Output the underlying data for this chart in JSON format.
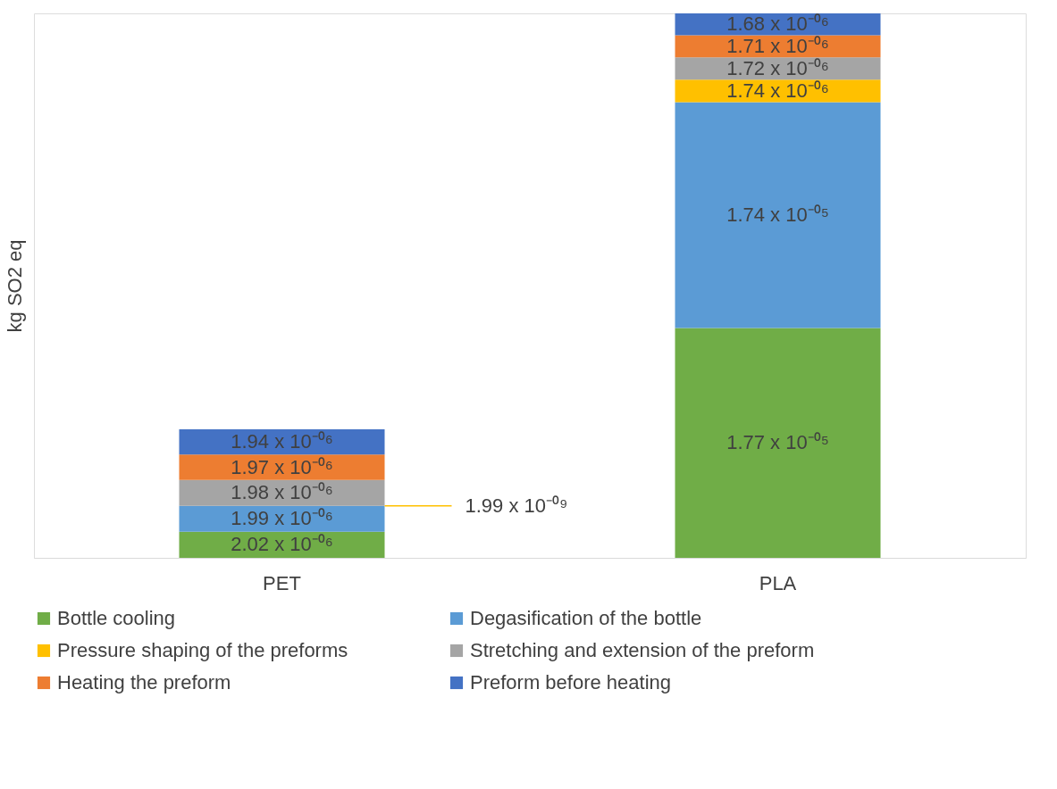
{
  "chart_data": {
    "type": "bar",
    "stacked": true,
    "ylabel": "kg SO2 eq",
    "categories": [
      "PET",
      "PLA"
    ],
    "legend": "bottom",
    "grid": false,
    "series": [
      {
        "name": "Bottle cooling",
        "color": "#70ad47",
        "values": [
          2.02e-06,
          1.77e-05
        ],
        "value_labels": [
          "2.02 x 10⁻⁰⁶",
          "1.77 x 10⁻⁰⁵"
        ]
      },
      {
        "name": "Degasification of the bottle",
        "color": "#5b9bd5",
        "values": [
          1.99e-06,
          1.74e-05
        ],
        "value_labels": [
          "1.99 x 10⁻⁰⁶",
          "1.74 x 10⁻⁰⁵"
        ]
      },
      {
        "name": "Pressure shaping of the preforms",
        "color": "#ffc000",
        "values": [
          1.99e-09,
          1.74e-06
        ],
        "value_labels": [
          "1.99 x 10⁻⁰⁹",
          "1.74 x 10⁻⁰⁶"
        ]
      },
      {
        "name": "Stretching and extension of the  preform",
        "color": "#a5a5a5",
        "values": [
          1.98e-06,
          1.72e-06
        ],
        "value_labels": [
          "1.98 x 10⁻⁰⁶",
          "1.72 x 10⁻⁰⁶"
        ]
      },
      {
        "name": "Heating the preform",
        "color": "#ed7d31",
        "values": [
          1.97e-06,
          1.71e-06
        ],
        "value_labels": [
          "1.97 x 10⁻⁰⁶",
          "1.71 x 10⁻⁰⁶"
        ]
      },
      {
        "name": "Preform before heating",
        "color": "#4472c4",
        "values": [
          1.94e-06,
          1.68e-06
        ],
        "value_labels": [
          "1.94 x 10⁻⁰⁶",
          "1.68 x 10⁻⁰⁶"
        ]
      }
    ]
  }
}
